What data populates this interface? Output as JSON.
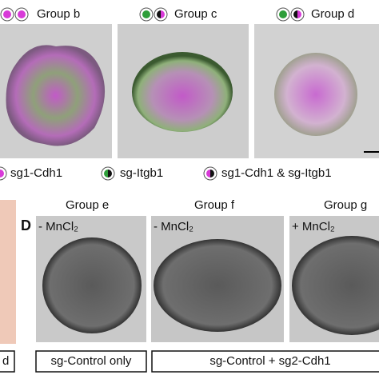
{
  "top": {
    "groups": [
      "Group b",
      "Group c",
      "Group d"
    ]
  },
  "legend": {
    "items": [
      "sg1-Cdh1",
      "sg-Itgb1",
      "sg1-Cdh1 & sg-Itgb1"
    ]
  },
  "panel_d": {
    "label": "D",
    "groups": [
      "Group e",
      "Group f",
      "Group g"
    ],
    "conditions": [
      "- MnCl₂",
      "- MnCl₂",
      "+ MnCl₂"
    ],
    "footers": [
      "d",
      "sg-Control only",
      "sg-Control + sg2-Cdh1"
    ]
  }
}
